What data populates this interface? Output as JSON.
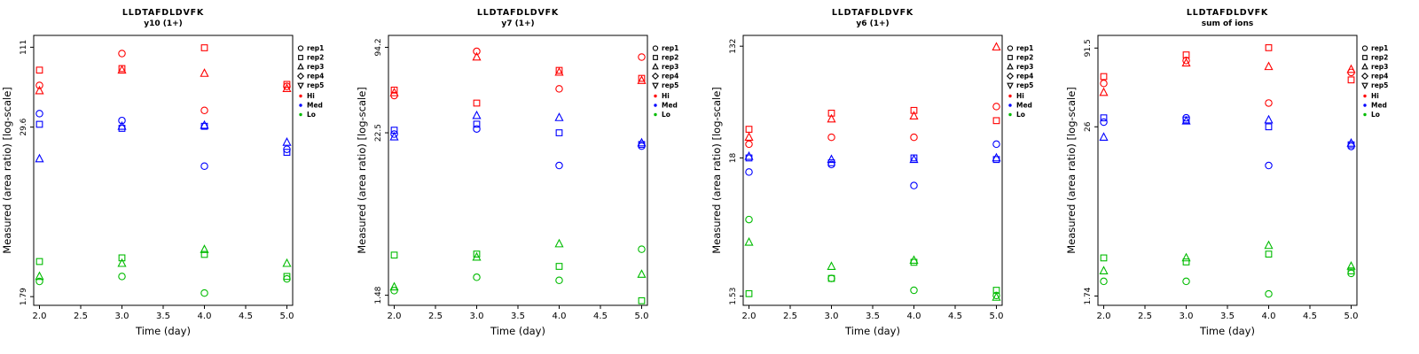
{
  "page": {
    "description_note": ""
  },
  "legend": {
    "reps": [
      {
        "label": "rep1",
        "marker": "circle"
      },
      {
        "label": "rep2",
        "marker": "square"
      },
      {
        "label": "rep3",
        "marker": "triangle-up"
      },
      {
        "label": "rep4",
        "marker": "diamond"
      },
      {
        "label": "rep5",
        "marker": "triangle-down"
      }
    ],
    "groups": [
      {
        "label": "Hi",
        "color": "#FF0000"
      },
      {
        "label": "Med",
        "color": "#0000FF"
      },
      {
        "label": "Lo",
        "color": "#00BB00"
      }
    ]
  },
  "chart_data": [
    {
      "type": "scatter",
      "title": "LLDTAFDLDVFK",
      "subtitle": "y10 (1+)",
      "xlabel": "Time (day)",
      "ylabel": "Measured (area ratio) [log-scale]",
      "x_scale": "linear",
      "y_scale": "log",
      "xlim": [
        1.93,
        5.07
      ],
      "xticks": [
        "2.0",
        "2.5",
        "3.0",
        "3.5",
        "4.0",
        "4.5",
        "5.0"
      ],
      "ylim": [
        1.55,
        135
      ],
      "yticks": [
        "1.79",
        "29.6",
        "111"
      ],
      "x": [
        2,
        3,
        4,
        5
      ],
      "series": [
        {
          "name": "Hi rep1",
          "group": "Hi",
          "marker": "circle",
          "values": [
            59,
            100,
            39,
            58
          ]
        },
        {
          "name": "Hi rep2",
          "group": "Hi",
          "marker": "square",
          "values": [
            76,
            78,
            110,
            60
          ]
        },
        {
          "name": "Hi rep3",
          "group": "Hi",
          "marker": "triangle-up",
          "values": [
            54,
            76,
            72,
            56
          ]
        },
        {
          "name": "Med rep1",
          "group": "Med",
          "marker": "circle",
          "values": [
            37,
            33,
            15.5,
            20.5
          ]
        },
        {
          "name": "Med rep2",
          "group": "Med",
          "marker": "square",
          "values": [
            31,
            29,
            30,
            19.5
          ]
        },
        {
          "name": "Med rep3",
          "group": "Med",
          "marker": "triangle-up",
          "values": [
            17.5,
            30,
            30.5,
            23
          ]
        },
        {
          "name": "Lo rep1",
          "group": "Lo",
          "marker": "circle",
          "values": [
            2.3,
            2.5,
            1.9,
            2.4
          ]
        },
        {
          "name": "Lo rep2",
          "group": "Lo",
          "marker": "square",
          "values": [
            3.2,
            3.4,
            3.6,
            2.5
          ]
        },
        {
          "name": "Lo rep3",
          "group": "Lo",
          "marker": "triangle-up",
          "values": [
            2.5,
            3.1,
            3.9,
            3.1
          ]
        }
      ]
    },
    {
      "type": "scatter",
      "title": "LLDTAFDLDVFK",
      "subtitle": "y7 (1+)",
      "xlabel": "Time (day)",
      "ylabel": "Measured (area ratio) [log-scale]",
      "x_scale": "linear",
      "y_scale": "log",
      "xlim": [
        1.93,
        5.07
      ],
      "xticks": [
        "2.0",
        "2.5",
        "3.0",
        "3.5",
        "4.0",
        "4.5",
        "5.0"
      ],
      "ylim": [
        1.25,
        115
      ],
      "yticks": [
        "1.48",
        "22.5",
        "94.2"
      ],
      "x": [
        2,
        3,
        4,
        5
      ],
      "series": [
        {
          "name": "Hi rep1",
          "group": "Hi",
          "marker": "circle",
          "values": [
            42,
            88,
            47,
            80
          ]
        },
        {
          "name": "Hi rep2",
          "group": "Hi",
          "marker": "square",
          "values": [
            46,
            37,
            64,
            56
          ]
        },
        {
          "name": "Hi rep3",
          "group": "Hi",
          "marker": "triangle-up",
          "values": [
            44,
            80,
            62,
            54
          ]
        },
        {
          "name": "Med rep1",
          "group": "Med",
          "marker": "circle",
          "values": [
            22,
            24,
            13,
            18
          ]
        },
        {
          "name": "Med rep2",
          "group": "Med",
          "marker": "square",
          "values": [
            23.5,
            26,
            22.5,
            18.5
          ]
        },
        {
          "name": "Med rep3",
          "group": "Med",
          "marker": "triangle-up",
          "values": [
            21,
            30,
            29,
            19
          ]
        },
        {
          "name": "Lo rep1",
          "group": "Lo",
          "marker": "circle",
          "values": [
            1.6,
            2.0,
            1.9,
            3.2
          ]
        },
        {
          "name": "Lo rep2",
          "group": "Lo",
          "marker": "square",
          "values": [
            2.9,
            2.95,
            2.4,
            1.35
          ]
        },
        {
          "name": "Lo rep3",
          "group": "Lo",
          "marker": "triangle-up",
          "values": [
            1.7,
            2.8,
            3.5,
            2.1
          ]
        }
      ]
    },
    {
      "type": "scatter",
      "title": "LLDTAFDLDVFK",
      "subtitle": "y6 (1+)",
      "xlabel": "Time (day)",
      "ylabel": "Measured (area ratio) [log-scale]",
      "x_scale": "linear",
      "y_scale": "log",
      "xlim": [
        1.93,
        5.07
      ],
      "xticks": [
        "2.0",
        "2.5",
        "3.0",
        "3.5",
        "4.0",
        "4.5",
        "5.0"
      ],
      "ylim": [
        1.3,
        160
      ],
      "yticks": [
        "1.53",
        "18",
        "132"
      ],
      "x": [
        2,
        3,
        4,
        5
      ],
      "series": [
        {
          "name": "Hi rep1",
          "group": "Hi",
          "marker": "circle",
          "values": [
            23,
            26,
            26,
            45
          ]
        },
        {
          "name": "Hi rep2",
          "group": "Hi",
          "marker": "square",
          "values": [
            30,
            40,
            42,
            35
          ]
        },
        {
          "name": "Hi rep3",
          "group": "Hi",
          "marker": "triangle-up",
          "values": [
            26,
            36,
            38,
            130
          ]
        },
        {
          "name": "Med rep1",
          "group": "Med",
          "marker": "circle",
          "values": [
            14,
            16,
            11,
            23
          ]
        },
        {
          "name": "Med rep2",
          "group": "Med",
          "marker": "square",
          "values": [
            18,
            16.5,
            18,
            17.5
          ]
        },
        {
          "name": "Med rep3",
          "group": "Med",
          "marker": "triangle-up",
          "values": [
            18.5,
            17.5,
            17.5,
            18
          ]
        },
        {
          "name": "Lo rep1",
          "group": "Lo",
          "marker": "circle",
          "values": [
            6,
            2.1,
            1.7,
            1.55
          ]
        },
        {
          "name": "Lo rep2",
          "group": "Lo",
          "marker": "square",
          "values": [
            1.6,
            2.1,
            2.8,
            1.7
          ]
        },
        {
          "name": "Lo rep3",
          "group": "Lo",
          "marker": "triangle-up",
          "values": [
            4,
            2.6,
            2.9,
            1.5
          ]
        }
      ]
    },
    {
      "type": "scatter",
      "title": "LLDTAFDLDVFK",
      "subtitle": "sum of ions",
      "xlabel": "Time (day)",
      "ylabel": "Measured (area ratio) [log-scale]",
      "x_scale": "linear",
      "y_scale": "log",
      "xlim": [
        1.93,
        5.07
      ],
      "xticks": [
        "2.0",
        "2.5",
        "3.0",
        "3.5",
        "4.0",
        "4.5",
        "5.0"
      ],
      "ylim": [
        1.5,
        112
      ],
      "yticks": [
        "1.74",
        "26",
        "91.5"
      ],
      "x": [
        2,
        3,
        4,
        5
      ],
      "series": [
        {
          "name": "Hi rep1",
          "group": "Hi",
          "marker": "circle",
          "values": [
            52,
            75,
            38,
            62
          ]
        },
        {
          "name": "Hi rep2",
          "group": "Hi",
          "marker": "square",
          "values": [
            58,
            82,
            92,
            55
          ]
        },
        {
          "name": "Hi rep3",
          "group": "Hi",
          "marker": "triangle-up",
          "values": [
            45,
            72,
            68,
            65
          ]
        },
        {
          "name": "Med rep1",
          "group": "Med",
          "marker": "circle",
          "values": [
            28,
            30,
            14,
            19
          ]
        },
        {
          "name": "Med rep2",
          "group": "Med",
          "marker": "square",
          "values": [
            30,
            29,
            26,
            19.5
          ]
        },
        {
          "name": "Med rep3",
          "group": "Med",
          "marker": "triangle-up",
          "values": [
            22,
            28.5,
            29,
            20
          ]
        },
        {
          "name": "Lo rep1",
          "group": "Lo",
          "marker": "circle",
          "values": [
            2.2,
            2.2,
            1.8,
            2.5
          ]
        },
        {
          "name": "Lo rep2",
          "group": "Lo",
          "marker": "square",
          "values": [
            3.2,
            3.0,
            3.4,
            2.6
          ]
        },
        {
          "name": "Lo rep3",
          "group": "Lo",
          "marker": "triangle-up",
          "values": [
            2.6,
            3.2,
            3.9,
            2.8
          ]
        }
      ]
    }
  ]
}
